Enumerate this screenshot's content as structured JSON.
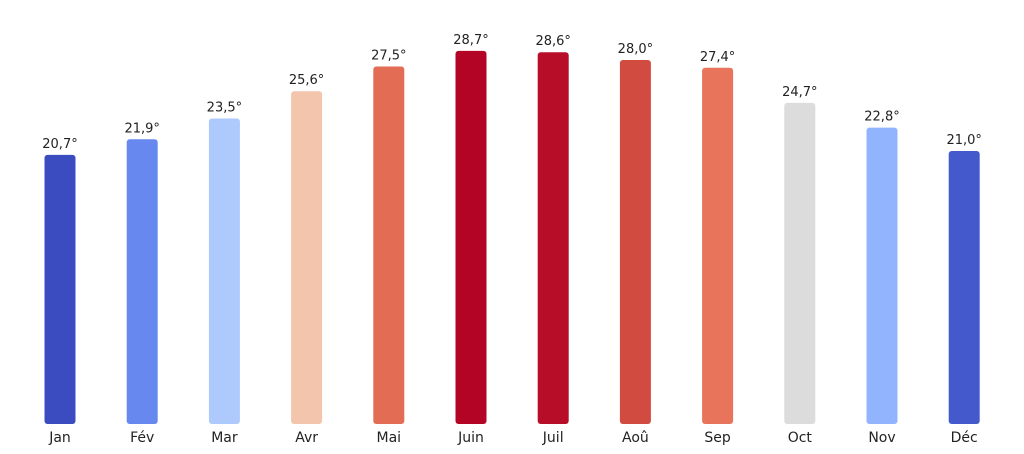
{
  "chart_data": {
    "type": "bar",
    "title": "",
    "xlabel": "",
    "ylabel": "",
    "categories": [
      "Jan",
      "Fév",
      "Mar",
      "Avr",
      "Mai",
      "Juin",
      "Juil",
      "Aoû",
      "Sep",
      "Oct",
      "Nov",
      "Déc"
    ],
    "values": [
      20.7,
      21.9,
      23.5,
      25.6,
      27.5,
      28.7,
      28.6,
      28.0,
      27.4,
      24.7,
      22.8,
      21.0
    ],
    "value_labels": [
      "20,7°",
      "21,9°",
      "23,5°",
      "25,6°",
      "27,5°",
      "28,7°",
      "28,6°",
      "28,0°",
      "27,4°",
      "24,7°",
      "22,8°",
      "21,0°"
    ],
    "colors": [
      "#3b4cc0",
      "#6788ee",
      "#aec9fc",
      "#f4c5ad",
      "#e36c55",
      "#b40426",
      "#b70d28",
      "#d24b40",
      "#e7745b",
      "#dddcdc",
      "#92b4fe",
      "#445acc"
    ],
    "ylim": [
      0,
      29.5
    ],
    "grid": false,
    "legend": "none"
  }
}
